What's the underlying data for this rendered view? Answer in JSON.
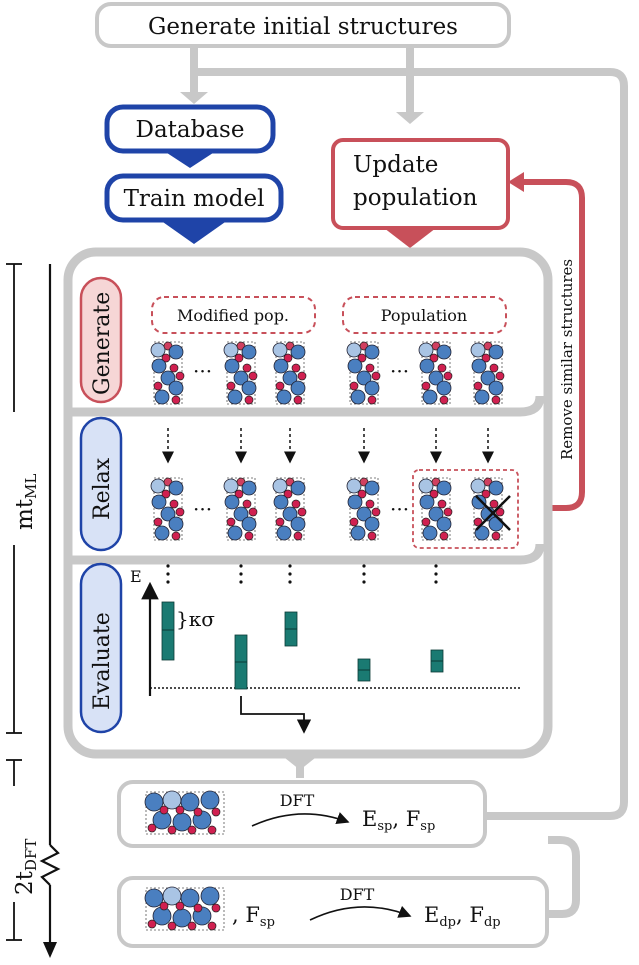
{
  "title_box": "Generate initial structures",
  "database": "Database",
  "train_model": "Train model",
  "update_population": [
    "Update",
    "population"
  ],
  "remove_similar": "Remove similar structures",
  "stages": {
    "generate": "Generate",
    "relax": "Relax",
    "evaluate": "Evaluate"
  },
  "pools": {
    "modified": "Modified pop.",
    "population": "Population"
  },
  "ellipsis": "···",
  "energy_axis": "E",
  "sigma_label": "}κσ",
  "time_ml": {
    "main": "mt",
    "sub": "ML"
  },
  "time_dft": {
    "main": "2t",
    "sub": "DFT"
  },
  "dft_sp": {
    "arrow_label": "DFT",
    "e": "E",
    "e_sub": "sp",
    "sep": ", ",
    "f": "F",
    "f_sub": "sp"
  },
  "dft_dp": {
    "input_f": ", F",
    "input_f_sub": "sp",
    "arrow_label": "DFT",
    "e": "E",
    "e_sub": "dp",
    "sep": ", ",
    "f": "F",
    "f_sub": "dp"
  },
  "colors": {
    "blue": "#1f44a8",
    "red": "#c8505a",
    "gray": "#c8c8c8",
    "teal": "#1a7a72",
    "pink": "#f6d6d6",
    "lightblue": "#d8e2f6"
  }
}
